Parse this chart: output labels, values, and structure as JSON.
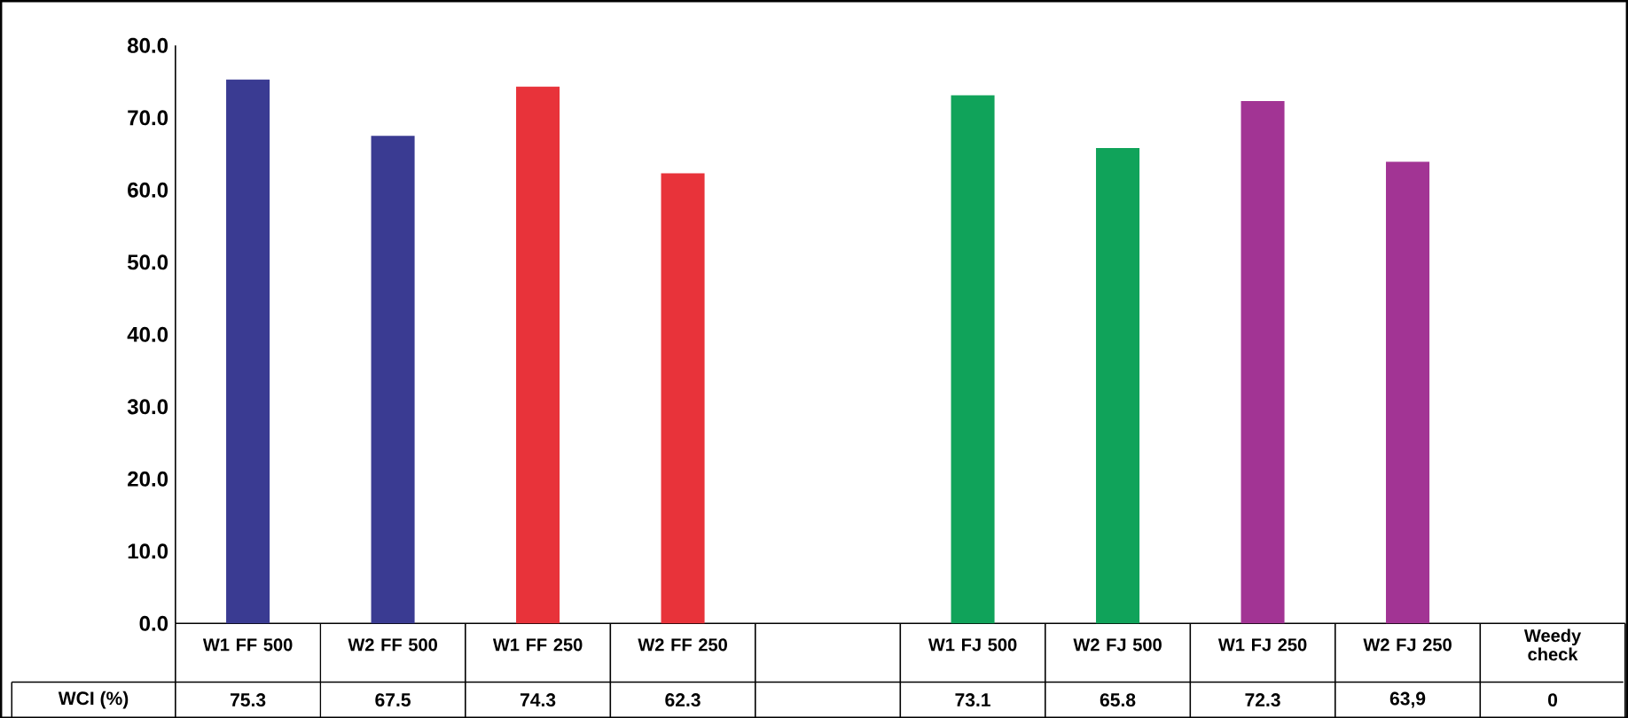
{
  "chart_data": {
    "type": "bar",
    "categories": [
      "W1 FF 500",
      "W2 FF 500",
      "W1 FF 250",
      "W2 FF 250",
      null,
      "W1 FJ 500",
      "W2 FJ 500",
      "W1 FJ 250",
      "W2 FJ 250",
      "Weedy check"
    ],
    "series": [
      {
        "name": "WCI (%)",
        "colors": [
          "#3a3b92",
          "#3a3b92",
          "#e8333a",
          "#e8333a",
          null,
          "#10a35a",
          "#10a35a",
          "#a23494",
          "#a23494",
          null
        ],
        "values": [
          75.3,
          67.5,
          74.3,
          62.3,
          null,
          73.1,
          65.8,
          72.3,
          63.9,
          0
        ],
        "value_labels": [
          "75.3",
          "67.5",
          "74.3",
          "62.3",
          null,
          "73.1",
          "65.8",
          "72.3",
          "63,9",
          "0"
        ]
      }
    ],
    "ylim": [
      0,
      80
    ],
    "yticks": [
      {
        "value": 0,
        "label": "0.0"
      },
      {
        "value": 10,
        "label": "10.0"
      },
      {
        "value": 20,
        "label": "20.0"
      },
      {
        "value": 30,
        "label": "30.0"
      },
      {
        "value": 40,
        "label": "40.0"
      },
      {
        "value": 50,
        "label": "50.0"
      },
      {
        "value": 60,
        "label": "60.0"
      },
      {
        "value": 70,
        "label": "70.0"
      },
      {
        "value": 80,
        "label": "80.0"
      }
    ],
    "grid": false
  }
}
